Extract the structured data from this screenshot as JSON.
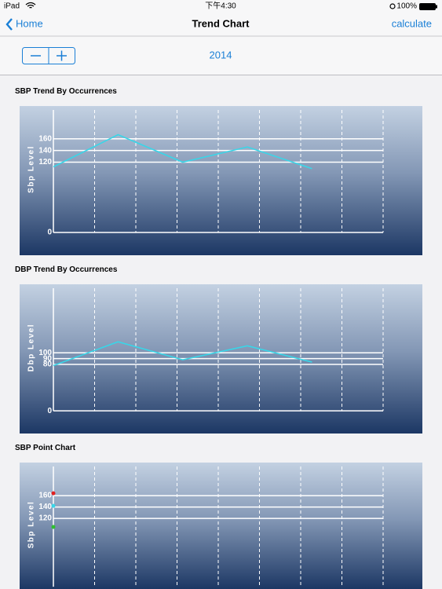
{
  "status_bar": {
    "device": "iPad",
    "time": "下午4:30",
    "battery": "100%"
  },
  "nav_bar": {
    "back": "Home",
    "title": "Trend Chart",
    "action": "calculate"
  },
  "toolbar": {
    "year": "2014"
  },
  "charts": [
    {
      "type": "line",
      "title": "SBP Trend By Occurrences",
      "ylabel": "Sbp Level",
      "x": [
        0,
        1,
        2,
        3,
        4
      ],
      "values": [
        112,
        167,
        120,
        146,
        109
      ],
      "color": "#38d6e8",
      "xlim": [
        0,
        5.1
      ],
      "ylim": [
        -39,
        216
      ],
      "yticks": [
        0,
        120,
        140,
        160
      ],
      "grid": true
    },
    {
      "type": "line",
      "title": "DBP Trend By Occurrences",
      "ylabel": "Dbp Level",
      "x": [
        0,
        1,
        2,
        3,
        4
      ],
      "values": [
        78,
        119,
        88,
        112,
        84
      ],
      "color": "#38d6e8",
      "xlim": [
        0,
        5.1
      ],
      "ylim": [
        -39,
        218
      ],
      "yticks": [
        0,
        80,
        90,
        100
      ],
      "grid": true
    },
    {
      "type": "scatter",
      "title": "SBP Point Chart",
      "ylabel": "Sbp Level",
      "x": [
        0,
        0,
        0
      ],
      "values": [
        164,
        142,
        105
      ],
      "colors": [
        "#e02020",
        "#38d6e8",
        "#30c030"
      ],
      "xlim": [
        0,
        5.1
      ],
      "ylim": [
        -4,
        218
      ],
      "yticks": [
        120,
        140,
        160
      ],
      "grid": true
    }
  ]
}
